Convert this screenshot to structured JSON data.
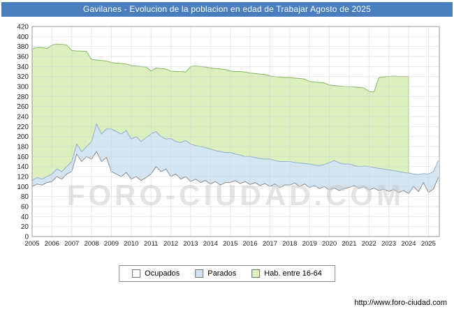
{
  "title": "Gavilanes - Evolucion de la poblacion en edad de Trabajar Agosto de 2025",
  "watermark": "FORO-CIUDAD.COM",
  "footer_url": "http://www.foro-ciudad.com",
  "colors": {
    "title_bg": "#4a7ebc",
    "title_text": "#ffffff",
    "grid": "#d4d4d4",
    "plot_border": "#9a9a9a",
    "tick_text": "#1a1a1a",
    "watermark": "#c9c9c9"
  },
  "chart_data": {
    "type": "area",
    "title": "Gavilanes - Evolucion de la poblacion en edad de Trabajar Agosto de 2025",
    "xlabel": "",
    "ylabel": "",
    "ylim": [
      0,
      420
    ],
    "y_tick_step": 20,
    "x_domain": [
      2005,
      2025.55
    ],
    "x_start": 2005,
    "x_step": 0.25,
    "x_ticks": [
      2005,
      2006,
      2007,
      2008,
      2009,
      2010,
      2011,
      2012,
      2013,
      2014,
      2015,
      2016,
      2017,
      2018,
      2019,
      2020,
      2021,
      2022,
      2023,
      2024,
      2025
    ],
    "grid": true,
    "legend_position": "bottom",
    "legend": [
      {
        "label": "Ocupados",
        "color": "#ffffff"
      },
      {
        "label": "Parados",
        "color": "#d3e5f3"
      },
      {
        "label": "Hab. entre 16-64",
        "color": "#dcefbe"
      }
    ],
    "series": [
      {
        "key": "hab",
        "name": "Hab. entre 16-64",
        "fill": "#dcefbe",
        "stroke": "#85b85e",
        "end_drop": true,
        "values": [
          375,
          378,
          378,
          376,
          383,
          385,
          384,
          383,
          372,
          371,
          371,
          370,
          354,
          353,
          352,
          351,
          348,
          347,
          346,
          345,
          342,
          341,
          340,
          339,
          331,
          337,
          336,
          335,
          331,
          330,
          330,
          329,
          340,
          341,
          340,
          339,
          337,
          336,
          335,
          334,
          331,
          330,
          330,
          329,
          327,
          326,
          325,
          324,
          321,
          320,
          319,
          318,
          318,
          317,
          316,
          315,
          310,
          309,
          308,
          307,
          303,
          302,
          301,
          300,
          300,
          299,
          298,
          297,
          290,
          289,
          318,
          319,
          320,
          321,
          320,
          320,
          320,
          null,
          null,
          null,
          null,
          null,
          null
        ]
      },
      {
        "key": "parados",
        "name": "Parados",
        "fill": "#d3e5f3",
        "stroke": "#8fafcd",
        "end_drop": false,
        "values": [
          112,
          118,
          115,
          120,
          125,
          135,
          130,
          140,
          150,
          185,
          170,
          180,
          190,
          225,
          205,
          215,
          215,
          210,
          205,
          212,
          195,
          200,
          190,
          198,
          205,
          210,
          200,
          195,
          196,
          190,
          188,
          192,
          185,
          182,
          180,
          178,
          175,
          172,
          170,
          168,
          168,
          165,
          163,
          160,
          160,
          158,
          156,
          155,
          155,
          152,
          150,
          150,
          150,
          148,
          147,
          146,
          145,
          143,
          142,
          144,
          148,
          152,
          147,
          145,
          145,
          142,
          140,
          141,
          140,
          138,
          136,
          135,
          133,
          132,
          130,
          128,
          127,
          125,
          124,
          126,
          125,
          130,
          152
        ]
      },
      {
        "key": "ocupados",
        "name": "Ocupados",
        "fill": "#ffffff",
        "stroke": "#8c8c8c",
        "end_drop": false,
        "values": [
          100,
          105,
          103,
          108,
          110,
          120,
          115,
          125,
          130,
          165,
          150,
          160,
          155,
          170,
          150,
          158,
          130,
          125,
          120,
          128,
          115,
          120,
          112,
          118,
          125,
          140,
          130,
          135,
          120,
          125,
          115,
          120,
          110,
          115,
          108,
          112,
          105,
          110,
          103,
          108,
          108,
          112,
          106,
          110,
          104,
          108,
          102,
          106,
          100,
          105,
          98,
          103,
          103,
          107,
          100,
          105,
          98,
          102,
          96,
          100,
          93,
          97,
          92,
          96,
          98,
          102,
          96,
          100,
          93,
          97,
          92,
          95,
          90,
          94,
          88,
          92,
          86,
          100,
          90,
          108,
          88,
          95,
          118
        ]
      }
    ]
  }
}
